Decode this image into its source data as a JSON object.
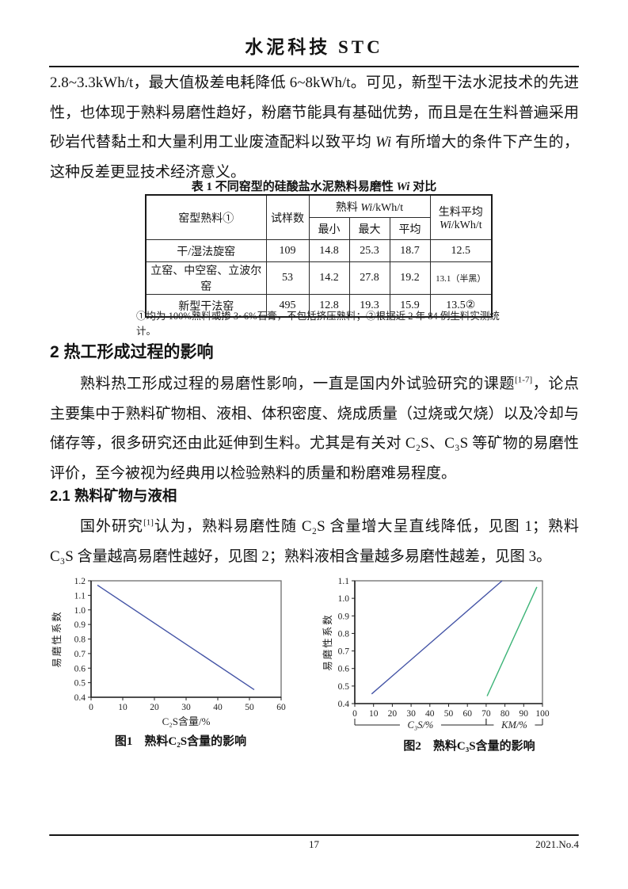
{
  "header": {
    "journal_title": "水泥科技  STC"
  },
  "paragraphs": {
    "p1": {
      "a": "2.8~3.3kWh/t，最大值极差电耗降低 6~8kWh/t。可见，新型干法水泥技术的先进性，也体现于熟料易磨性趋好，粉磨节能具有基础优势，而且是在生料普遍采用砂岩代替黏土和大量利用工业废渣配料以致平均 ",
      "wi": "Wi",
      "b": " 有所增大的条件下产生的，这种反差更显技术经济意义。"
    },
    "p2": {
      "a": "熟料热工形成过程的易磨性影响，一直是国内外试验研究的课题",
      "ref": "[1-7]",
      "b": "，论点主要集中于熟料矿物相、液相、体积密度、烧成质量（过烧或欠烧）以及冷却与储存等，很多研究还由此延伸到生料。尤其是有关对 C₂S、C₃S 等矿物的易磨性评价，至今被视为经典用以检验熟料的质量和粉磨难易程度。"
    },
    "p3": {
      "a": "国外研究",
      "ref": "[1]",
      "b": "认为，熟料易磨性随 C₂S 含量增大呈直线降低，见图 1；熟料 C₃S 含量越高易磨性越好，见图 2；熟料液相含量越多易磨性越差，见图 3。"
    }
  },
  "sections": {
    "s2": "2 热工形成过程的影响",
    "s21": "2.1 熟料矿物与液相"
  },
  "table": {
    "caption": {
      "a": "表 1 不同窑型的硅酸盐水泥熟料易磨性 ",
      "wi": "Wi",
      "b": " 对比"
    },
    "headers": {
      "kiln": "窑型熟料①",
      "samples": "试样数",
      "clinker_a": "熟料 ",
      "clinker_wi": "Wi",
      "clinker_b": "/kWh/t",
      "min": "最小",
      "max": "最大",
      "avg": "平均",
      "raw_a": "生料平均",
      "raw_wi": "Wi",
      "raw_b": "/kWh/t"
    },
    "rows": [
      {
        "kiln": "干/湿法旋窑",
        "samples": "109",
        "min": "14.8",
        "max": "25.3",
        "avg": "18.7",
        "raw": "12.5"
      },
      {
        "kiln": "立窑、中空窑、立波尔窑",
        "samples": "53",
        "min": "14.2",
        "max": "27.8",
        "avg": "19.2",
        "raw": "13.1（半黑）"
      },
      {
        "kiln": "新型干法窑",
        "samples": "495",
        "min": "12.8",
        "max": "19.3",
        "avg": "15.9",
        "raw": "13.5②"
      }
    ],
    "footnote": "①均为 100%熟料或掺 3~6%石膏，不包括挤压熟料；②根据近 2 年 84 例生料实测统计。"
  },
  "chart_data": [
    {
      "type": "line",
      "title": "图1　熟料C₂S含量的影响",
      "xlabel": "C₂S含量/%",
      "ylabel": "易磨性系数",
      "xlim": [
        0,
        60
      ],
      "ylim": [
        0.4,
        1.2
      ],
      "xticks": [
        "0",
        "10",
        "20",
        "30",
        "40",
        "50",
        "60"
      ],
      "yticks": [
        "0.4",
        "0.5",
        "0.6",
        "0.7",
        "0.8",
        "0.9",
        "1.0",
        "1.1",
        "1.2"
      ],
      "grid": false,
      "legend": "none",
      "series": [
        {
          "name": "C2S-grindability-trend",
          "color": "#4454a6",
          "points": [
            [
              2,
              1.17
            ],
            [
              51.5,
              0.452
            ]
          ]
        }
      ]
    },
    {
      "type": "line",
      "title": "图2　熟料C₃S含量的影响",
      "xlabel": "",
      "ylabel": "易磨性系数",
      "xlim": [
        0,
        100
      ],
      "ylim": [
        0.4,
        1.1
      ],
      "xticks": [
        "0",
        "10",
        "20",
        "30",
        "40",
        "50",
        "60",
        "70",
        "80",
        "90",
        "100"
      ],
      "yticks": [
        "0.4",
        "0.5",
        "0.6",
        "0.7",
        "0.8",
        "0.9",
        "1.0",
        "1.1"
      ],
      "grid": false,
      "legend": "none",
      "series": [
        {
          "name": "C3S-grindability-trend",
          "color": "#4454a6",
          "points": [
            [
              9,
              0.455
            ],
            [
              78.5,
              1.1
            ]
          ]
        },
        {
          "name": "KM-grindability-trend",
          "color": "#3bb376",
          "points": [
            [
              70.5,
              0.443
            ],
            [
              97,
              1.065
            ]
          ]
        }
      ],
      "axis_groups": [
        {
          "label": "C₃S/%",
          "from": 0,
          "to": 70
        },
        {
          "label": "KM/%",
          "from": 70,
          "to": 100
        }
      ]
    }
  ],
  "footer": {
    "page_number": "17",
    "issue": "2021.No.4"
  }
}
